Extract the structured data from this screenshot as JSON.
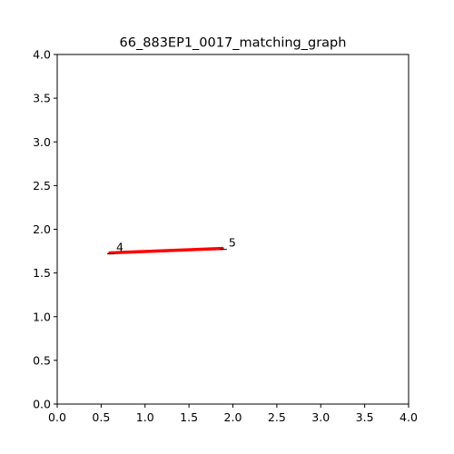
{
  "chart_data": {
    "type": "line",
    "title": "66_883EP1_0017_matching_graph",
    "xlabel": "",
    "ylabel": "",
    "xlim": [
      0.0,
      4.0
    ],
    "ylim": [
      0.0,
      4.0
    ],
    "xticks": [
      "0.0",
      "0.5",
      "1.0",
      "1.5",
      "2.0",
      "2.5",
      "3.0",
      "3.5",
      "4.0"
    ],
    "yticks": [
      "0.0",
      "0.5",
      "1.0",
      "1.5",
      "2.0",
      "2.5",
      "3.0",
      "3.5",
      "4.0"
    ],
    "grid": false,
    "nodes": [
      {
        "label": "4",
        "x": 0.6,
        "y": 1.73
      },
      {
        "label": "5",
        "x": 1.88,
        "y": 1.78
      }
    ],
    "edges": [
      {
        "from": "4",
        "to": "5",
        "color": "#ff0000"
      }
    ]
  }
}
